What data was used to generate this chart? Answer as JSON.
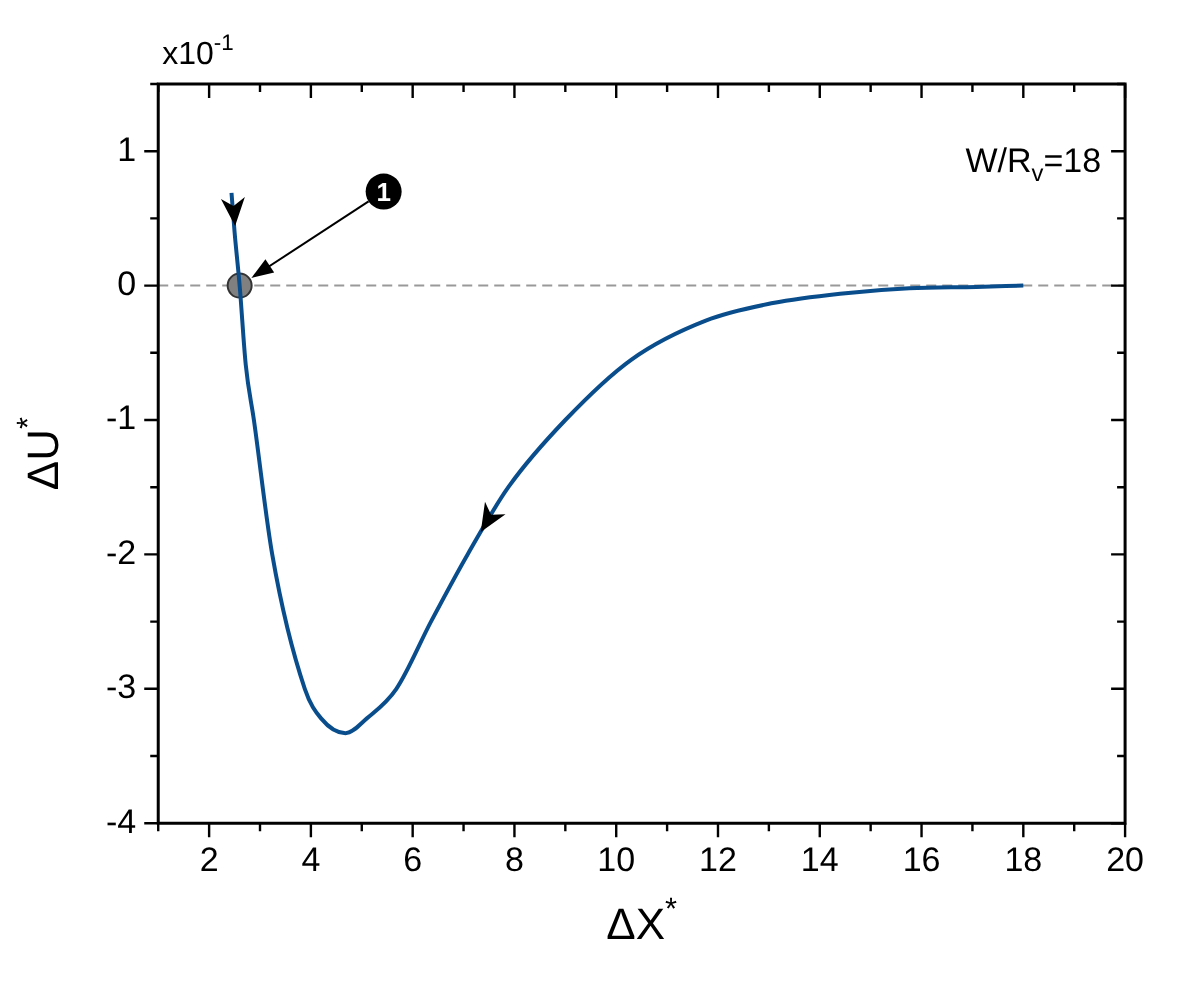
{
  "chart_data": {
    "type": "line",
    "xlabel": "ΔX$^{*}$",
    "ylabel": "ΔU$^{*}$",
    "xlim": [
      1,
      20
    ],
    "xticks": [
      2,
      4,
      6,
      8,
      10,
      12,
      14,
      16,
      18,
      20
    ],
    "ylim": [
      -4,
      1.5
    ],
    "yticks": [
      -4,
      -3,
      -2,
      -1,
      0,
      1
    ],
    "grid": false,
    "legend": false,
    "marker": "none",
    "line_style": "solid",
    "ref_lines": [
      {
        "axis": "y",
        "value": 0,
        "color": "#999999",
        "line_style": "dashed"
      }
    ],
    "annotations": [
      "x10$^{-1}$",
      "W/R$_{v}$=18",
      {
        "text": "1",
        "x": 2.6,
        "y": 0
      }
    ],
    "series": [
      {
        "color": "#0a4d8c",
        "x": [
          2.44,
          2.5,
          2.6,
          2.72,
          2.88,
          3.24,
          3.88,
          4.2,
          4.68,
          5.1,
          5.68,
          6.36,
          7.08,
          7.88,
          9.0,
          10.3,
          11.76,
          13.08,
          14.4,
          15.76,
          17.08,
          18.0
        ],
        "values": [
          0.69,
          0.4,
          0,
          -0.59,
          -1,
          -2,
          -3,
          -3.22,
          -3.33,
          -3.22,
          -3,
          -2.5,
          -2,
          -1.5,
          -1,
          -0.55,
          -0.26,
          -0.13,
          -0.06,
          -0.02,
          -0.01,
          0
        ]
      },
      {
        "type": "scatter",
        "color": "#808080",
        "marker": "circle",
        "x": [
          2.6
        ],
        "values": [
          0
        ]
      }
    ]
  }
}
